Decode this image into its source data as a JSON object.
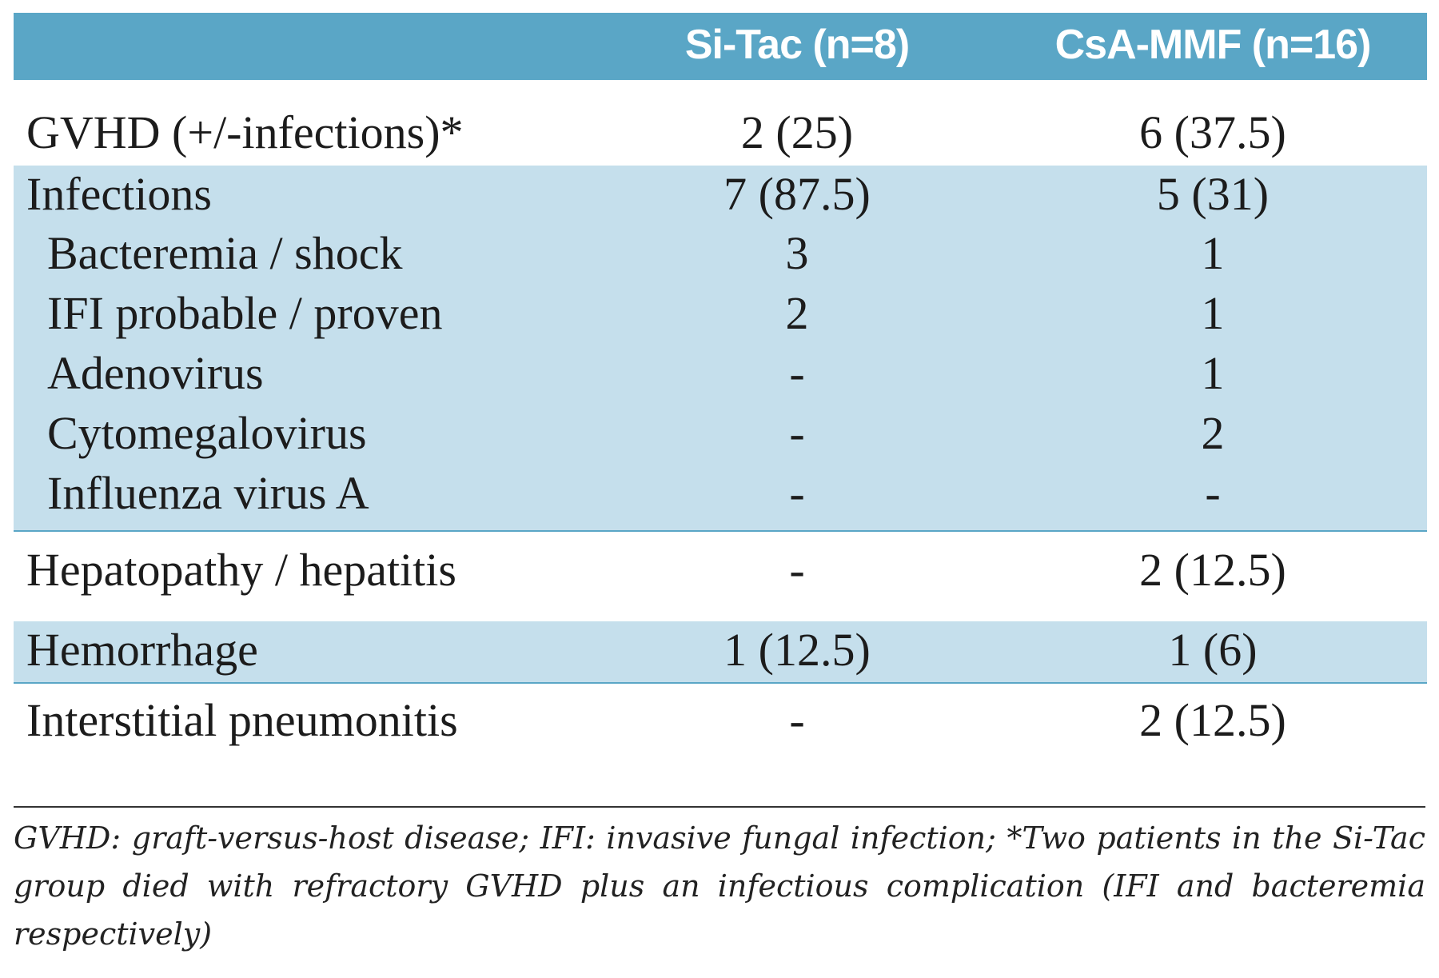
{
  "header": {
    "col1": "Si-Tac (n=8)",
    "col2": "CsA-MMF (n=16)"
  },
  "rows": [
    {
      "label": "GVHD (+/-infections)*",
      "a": "2 (25)",
      "b": "6 (37.5)"
    },
    {
      "label": "Infections",
      "a": "7 (87.5)",
      "b": "5 (31)"
    },
    {
      "label": "Bacteremia / shock",
      "a": "3",
      "b": "1"
    },
    {
      "label": "IFI probable / proven",
      "a": "2",
      "b": "1"
    },
    {
      "label": "Adenovirus",
      "a": "-",
      "b": "1"
    },
    {
      "label": "Cytomegalovirus",
      "a": "-",
      "b": "2"
    },
    {
      "label": "Influenza virus A",
      "a": "-",
      "b": "-"
    },
    {
      "label": "Hepatopathy / hepatitis",
      "a": "-",
      "b": "2 (12.5)"
    },
    {
      "label": "Hemorrhage",
      "a": "1 (12.5)",
      "b": "1 (6)"
    },
    {
      "label": "Interstitial pneumonitis",
      "a": "-",
      "b": "2 (12.5)"
    }
  ],
  "footnote": "GVHD: graft-versus-host disease; IFI: invasive fungal infection; *Two patients in the Si-Tac group died with refractory GVHD plus an infectious complication (IFI and bacteremia respectively)",
  "colors": {
    "header_bg": "#5aa6c6",
    "band_bg": "#c5dfec",
    "header_text": "#ffffff"
  }
}
